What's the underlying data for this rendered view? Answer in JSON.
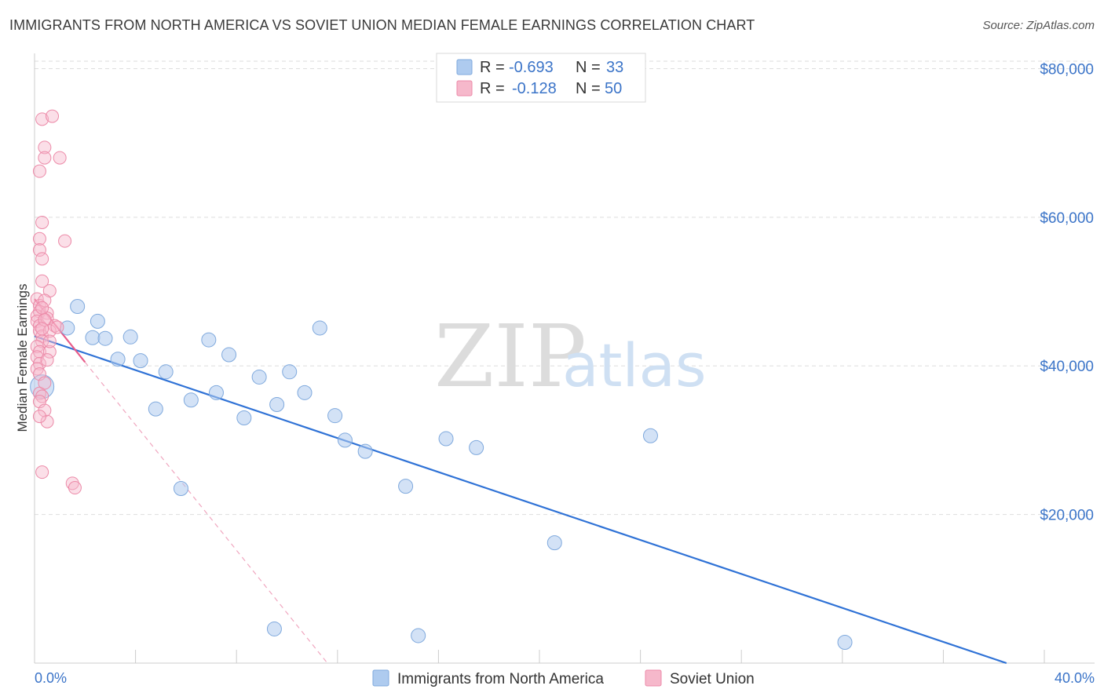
{
  "header": {
    "title": "IMMIGRANTS FROM NORTH AMERICA VS SOVIET UNION MEDIAN FEMALE EARNINGS CORRELATION CHART",
    "source": "Source: ZipAtlas.com"
  },
  "watermark": {
    "zip": "ZIP",
    "atlas": "atlas"
  },
  "legend": {
    "rows": [
      {
        "r_label": "R =",
        "r_value": "-0.693",
        "n_label": "N =",
        "n_value": "33",
        "color": "#aecbef"
      },
      {
        "r_label": "R =",
        "r_value": "-0.128",
        "n_label": "N =",
        "n_value": "50",
        "color": "#f6b8cb"
      }
    ]
  },
  "bottom_legend": [
    {
      "label": "Immigrants from North America",
      "color": "#aecbef"
    },
    {
      "label": "Soviet Union",
      "color": "#f6b8cb"
    }
  ],
  "chart_data": {
    "type": "scatter",
    "title": "IMMIGRANTS FROM NORTH AMERICA VS SOVIET UNION MEDIAN FEMALE EARNINGS CORRELATION CHART",
    "xlabel": "",
    "ylabel": "Median Female Earnings",
    "xlim": [
      0,
      40
    ],
    "ylim": [
      0,
      81000
    ],
    "x_tick_labels": [
      "0.0%",
      "40.0%"
    ],
    "y_ticks": [
      20000,
      40000,
      60000,
      80000
    ],
    "y_tick_labels": [
      "$20,000",
      "$40,000",
      "$60,000",
      "$80,000"
    ],
    "grid": true,
    "series": [
      {
        "name": "Immigrants from North America",
        "color": "#aecbef",
        "stroke": "#7fa9dd",
        "trend_color": "#2f72d6",
        "points": [
          [
            0.3,
            37200,
            15
          ],
          [
            1.3,
            45100,
            9
          ],
          [
            1.7,
            48000,
            9
          ],
          [
            2.5,
            46000,
            9
          ],
          [
            2.3,
            43800,
            9
          ],
          [
            2.8,
            43700,
            9
          ],
          [
            3.3,
            40900,
            9
          ],
          [
            3.8,
            43900,
            9
          ],
          [
            4.2,
            40700,
            9
          ],
          [
            4.8,
            34200,
            9
          ],
          [
            5.2,
            39200,
            9
          ],
          [
            5.8,
            23500,
            9
          ],
          [
            6.2,
            35400,
            9
          ],
          [
            6.9,
            43500,
            9
          ],
          [
            7.2,
            36400,
            9
          ],
          [
            7.7,
            41500,
            9
          ],
          [
            8.3,
            33000,
            9
          ],
          [
            8.9,
            38500,
            9
          ],
          [
            9.5,
            4600,
            9
          ],
          [
            9.6,
            34800,
            9
          ],
          [
            10.1,
            39200,
            9
          ],
          [
            10.7,
            36400,
            9
          ],
          [
            11.3,
            45100,
            9
          ],
          [
            11.9,
            33300,
            9
          ],
          [
            12.3,
            30000,
            9
          ],
          [
            13.1,
            28500,
            9
          ],
          [
            14.7,
            23800,
            9
          ],
          [
            15.2,
            3700,
            9
          ],
          [
            16.3,
            30200,
            9
          ],
          [
            17.5,
            29000,
            9
          ],
          [
            20.6,
            16200,
            9
          ],
          [
            24.4,
            30600,
            9
          ],
          [
            32.1,
            2800,
            9
          ]
        ],
        "trend": {
          "x0": 0,
          "y0": 44000,
          "x1": 38.5,
          "y1": 0
        }
      },
      {
        "name": "Soviet Union",
        "color": "#f6b8cb",
        "stroke": "#ec8aa8",
        "trend_color": "#e85b89",
        "points": [
          [
            0.2,
            66200,
            8
          ],
          [
            0.3,
            73200,
            8
          ],
          [
            0.7,
            73600,
            8
          ],
          [
            0.4,
            69400,
            8
          ],
          [
            0.4,
            68000,
            8
          ],
          [
            1.0,
            68000,
            8
          ],
          [
            0.3,
            59300,
            8
          ],
          [
            0.2,
            57100,
            8
          ],
          [
            0.2,
            55600,
            8
          ],
          [
            0.3,
            54400,
            8
          ],
          [
            1.2,
            56800,
            8
          ],
          [
            0.3,
            51400,
            8
          ],
          [
            0.6,
            50100,
            8
          ],
          [
            0.1,
            49000,
            8
          ],
          [
            0.2,
            48100,
            8
          ],
          [
            0.2,
            47300,
            8
          ],
          [
            0.1,
            46700,
            8
          ],
          [
            0.1,
            46000,
            8
          ],
          [
            0.2,
            45400,
            8
          ],
          [
            0.5,
            47100,
            8
          ],
          [
            0.5,
            46400,
            8
          ],
          [
            0.8,
            45400,
            8
          ],
          [
            0.2,
            44700,
            8
          ],
          [
            0.3,
            44000,
            8
          ],
          [
            0.3,
            43300,
            8
          ],
          [
            0.1,
            42600,
            8
          ],
          [
            0.2,
            41900,
            8
          ],
          [
            0.6,
            41900,
            8
          ],
          [
            0.1,
            41200,
            8
          ],
          [
            0.2,
            40300,
            8
          ],
          [
            0.1,
            39600,
            8
          ],
          [
            0.2,
            38900,
            8
          ],
          [
            0.2,
            36300,
            8
          ],
          [
            0.3,
            35900,
            8
          ],
          [
            0.2,
            35200,
            8
          ],
          [
            0.4,
            34000,
            8
          ],
          [
            0.5,
            32500,
            8
          ],
          [
            0.3,
            25700,
            8
          ],
          [
            1.5,
            24200,
            8
          ],
          [
            1.6,
            23600,
            8
          ],
          [
            0.2,
            33200,
            8
          ],
          [
            0.4,
            48800,
            8
          ],
          [
            0.4,
            37700,
            8
          ],
          [
            0.6,
            44700,
            8
          ],
          [
            0.4,
            46200,
            8
          ],
          [
            0.3,
            47800,
            8
          ],
          [
            0.5,
            40800,
            8
          ],
          [
            0.3,
            45000,
            8
          ],
          [
            0.6,
            43300,
            8
          ],
          [
            0.9,
            45200,
            8
          ]
        ],
        "trend": {
          "x0": 0,
          "y0": 49000,
          "x1": 2.0,
          "y1": 40500
        },
        "trend_extended": {
          "x0": 2.0,
          "y0": 40500,
          "x1": 11.6,
          "y1": 0
        }
      }
    ]
  }
}
